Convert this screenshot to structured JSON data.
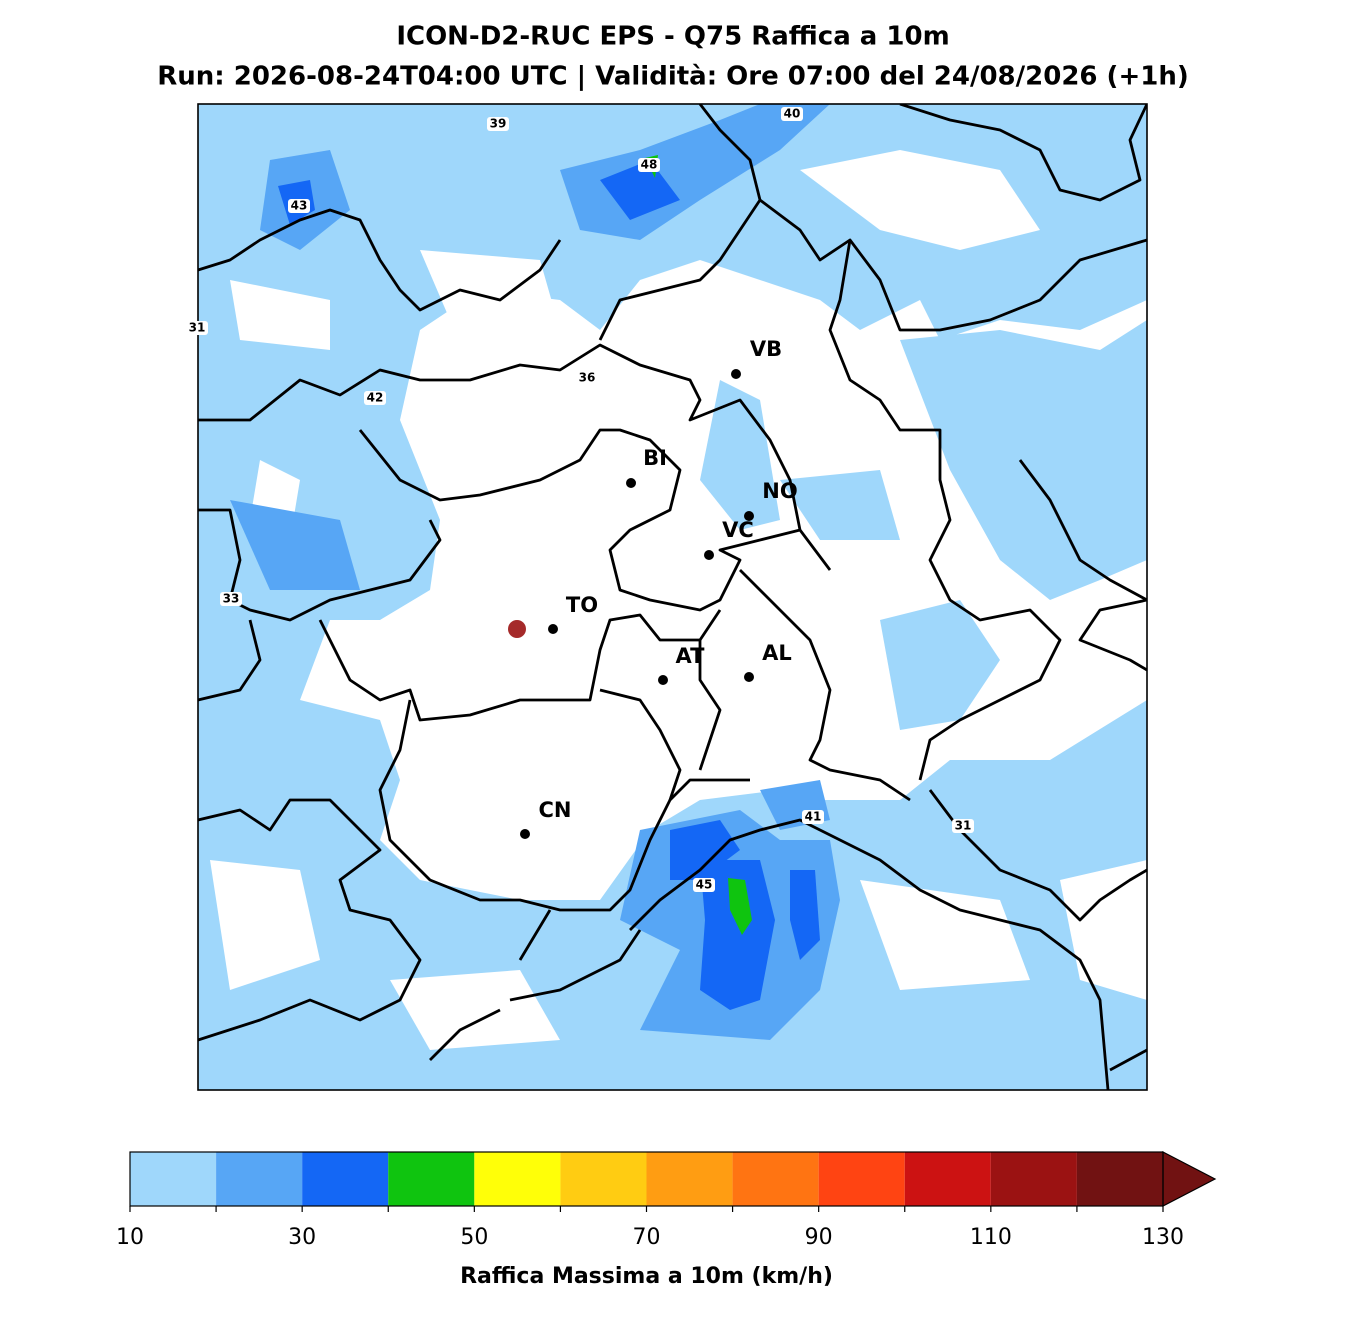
{
  "header": {
    "title": "ICON-D2-RUC EPS - Q75 Raffica a 10m",
    "subtitle": "Run: 2026-08-24T04:00 UTC | Validità: Ore 07:00 del 24/08/2026 (+1h)"
  },
  "cities": [
    "VB",
    "BI",
    "NO",
    "VC",
    "TO",
    "AT",
    "AL",
    "CN"
  ],
  "contour_labels": [
    39,
    40,
    48,
    43,
    31,
    36,
    42,
    33,
    41,
    31,
    45
  ],
  "colorbar": {
    "bounds": [
      10,
      20,
      30,
      40,
      50,
      60,
      70,
      80,
      90,
      100,
      110,
      120,
      130
    ],
    "colors": [
      "#9fd7fb",
      "#57a6f5",
      "#1467f5",
      "#0fc40f",
      "#ffff08",
      "#ffcc12",
      "#ff9d12",
      "#ff7412",
      "#ff4412",
      "#cc1212",
      "#9b1212",
      "#711212"
    ],
    "ticks": [
      10,
      30,
      50,
      70,
      90,
      110,
      130
    ],
    "label": "Raffica Massima a 10m (km/h)"
  }
}
